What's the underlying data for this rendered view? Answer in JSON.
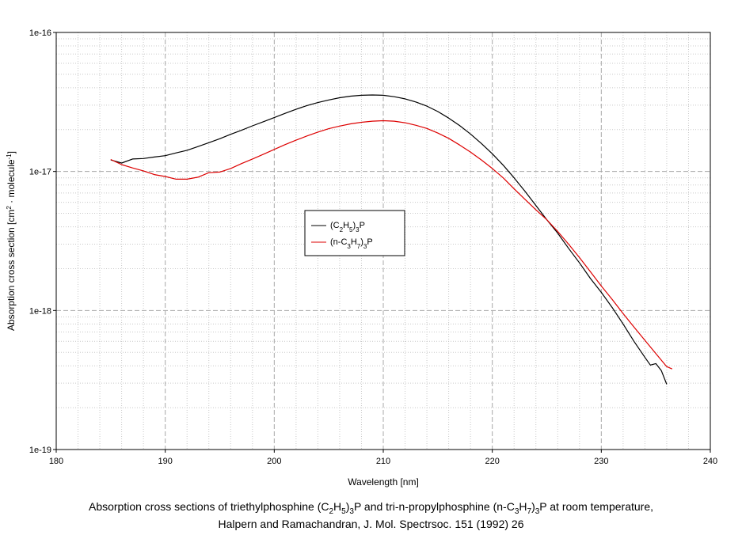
{
  "chart_data": {
    "type": "line",
    "xlabel": "Wavelength [nm]",
    "ylabel": {
      "text_before": "Absorption cross section [cm",
      "sup1": "2",
      "text_mid": " · molecule",
      "sup2": "-1",
      "text_after": "]"
    },
    "xlim": [
      180,
      240
    ],
    "ylim": [
      1e-19,
      1e-16
    ],
    "y_scale": "log",
    "x_ticks": [
      180,
      190,
      200,
      210,
      220,
      230,
      240
    ],
    "x_tick_labels": [
      "180",
      "190",
      "200",
      "210",
      "220",
      "230",
      "240"
    ],
    "y_ticks": [
      1e-19,
      1e-18,
      1e-17,
      1e-16
    ],
    "y_tick_labels": [
      "1e-19",
      "1e-18",
      "1e-17",
      "1e-16"
    ],
    "grid": true,
    "legend_position": "center",
    "series": [
      {
        "name": {
          "a": "(C",
          "b": "2",
          "c": "H",
          "d": "5",
          "e": ")",
          "f": "3",
          "g": "P"
        },
        "color": "#000000",
        "x": [
          185.0,
          186.0,
          187.0,
          188.0,
          189.0,
          190.0,
          191.0,
          192.0,
          193.0,
          194.0,
          195.0,
          196.0,
          197.0,
          198.0,
          199.0,
          200.0,
          201.0,
          202.0,
          203.0,
          204.0,
          205.0,
          206.0,
          207.0,
          208.0,
          209.0,
          210.0,
          211.0,
          212.0,
          213.0,
          214.0,
          215.0,
          216.0,
          217.0,
          218.0,
          219.0,
          220.0,
          221.0,
          222.0,
          223.0,
          224.0,
          225.0,
          226.0,
          227.0,
          228.0,
          229.0,
          230.0,
          231.0,
          232.0,
          233.0,
          234.0,
          234.5,
          235.0,
          235.5,
          236.0
        ],
        "y": [
          1.21e-17,
          1.15e-17,
          1.23e-17,
          1.24e-17,
          1.27e-17,
          1.3e-17,
          1.36e-17,
          1.42e-17,
          1.51e-17,
          1.61e-17,
          1.72e-17,
          1.85e-17,
          1.98e-17,
          2.13e-17,
          2.28e-17,
          2.44e-17,
          2.62e-17,
          2.8e-17,
          2.98e-17,
          3.13e-17,
          3.27e-17,
          3.39e-17,
          3.48e-17,
          3.53e-17,
          3.55e-17,
          3.53e-17,
          3.45e-17,
          3.33e-17,
          3.16e-17,
          2.95e-17,
          2.7e-17,
          2.42e-17,
          2.14e-17,
          1.86e-17,
          1.59e-17,
          1.34e-17,
          1.11e-17,
          9e-18,
          7.2e-18,
          5.7e-18,
          4.5e-18,
          3.6e-18,
          2.8e-18,
          2.2e-18,
          1.7e-18,
          1.35e-18,
          1.05e-18,
          8e-19,
          6e-19,
          4.6e-19,
          4.05e-19,
          4.15e-19,
          3.7e-19,
          2.95e-19
        ]
      },
      {
        "name": {
          "a": "(n-C",
          "b": "3",
          "c": "H",
          "d": "7",
          "e": ")",
          "f": "3",
          "g": "P"
        },
        "color": "#dd0000",
        "x": [
          185.0,
          186.0,
          187.0,
          188.0,
          189.0,
          190.0,
          191.0,
          192.0,
          193.0,
          194.0,
          195.0,
          196.0,
          197.0,
          198.0,
          199.0,
          200.0,
          201.0,
          202.0,
          203.0,
          204.0,
          205.0,
          206.0,
          207.0,
          208.0,
          209.0,
          210.0,
          211.0,
          212.0,
          213.0,
          214.0,
          215.0,
          216.0,
          217.0,
          218.0,
          219.0,
          220.0,
          221.0,
          222.0,
          223.0,
          224.0,
          225.0,
          226.0,
          227.0,
          228.0,
          229.0,
          230.0,
          231.0,
          232.0,
          233.0,
          234.0,
          235.0,
          236.0,
          236.5
        ],
        "y": [
          1.22e-17,
          1.12e-17,
          1.06e-17,
          1.01e-17,
          9.5e-18,
          9.2e-18,
          8.8e-18,
          8.8e-18,
          9.1e-18,
          9.8e-18,
          9.9e-18,
          1.05e-17,
          1.14e-17,
          1.23e-17,
          1.33e-17,
          1.44e-17,
          1.56e-17,
          1.68e-17,
          1.8e-17,
          1.92e-17,
          2.03e-17,
          2.12e-17,
          2.2e-17,
          2.26e-17,
          2.3e-17,
          2.32e-17,
          2.3e-17,
          2.24e-17,
          2.15e-17,
          2.04e-17,
          1.89e-17,
          1.73e-17,
          1.55e-17,
          1.38e-17,
          1.21e-17,
          1.05e-17,
          9e-18,
          7.5e-18,
          6.3e-18,
          5.3e-18,
          4.5e-18,
          3.7e-18,
          3e-18,
          2.4e-18,
          1.9e-18,
          1.5e-18,
          1.2e-18,
          9.5e-19,
          7.6e-19,
          6.1e-19,
          4.9e-19,
          3.95e-19,
          3.8e-19
        ]
      }
    ]
  },
  "caption": {
    "line1": {
      "p1": "Absorption cross sections of triethylphosphine (C",
      "s1": "2",
      "p2": "H",
      "s2": "5",
      "p3": ")",
      "s3": "3",
      "p4": "P and tri-n-propylphosphine (n-C",
      "s4": "3",
      "p5": "H",
      "s5": "7",
      "p6": ")",
      "s6": "3",
      "p7": "P at room temperature,"
    },
    "line2": "Halpern and Ramachandran, J. Mol. Spectrsoc. 151 (1992) 26"
  }
}
